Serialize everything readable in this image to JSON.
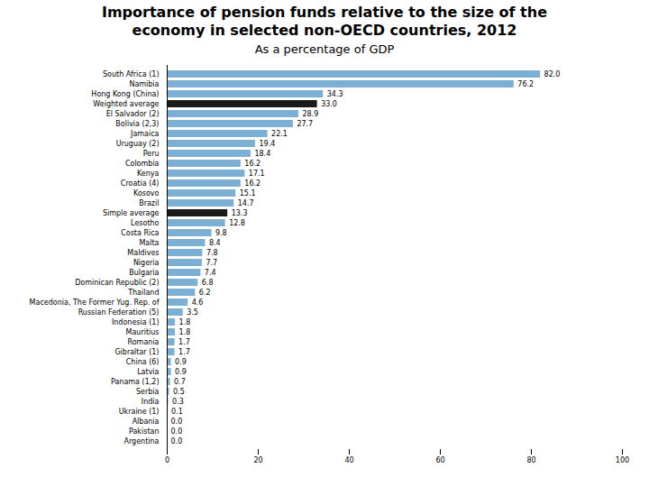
{
  "chart_data": {
    "type": "bar",
    "orientation": "horizontal",
    "title": "Importance of pension funds relative to the size of the\neconomy in selected non-OECD countries, 2012",
    "subtitle": "As a percentage of GDP",
    "categories": [
      "South Africa (1)",
      "Namibia",
      "Hong Kong (China)",
      "Weighted average",
      "El Salvador (2)",
      "Bolivia (2,3)",
      "Jamaica",
      "Uruguay (2)",
      "Peru",
      "Colombia",
      "Kenya",
      "Croatia (4)",
      "Kosovo",
      "Brazil",
      "Simple average",
      "Lesotho",
      "Costa Rica",
      "Malta",
      "Maldives",
      "Nigeria",
      "Bulgaria",
      "Dominican Republic (2)",
      "Thailand",
      "Macedonia, The Former Yug. Rep. of",
      "Russian Federation (5)",
      "Indonesia (1)",
      "Mauritius",
      "Romania",
      "Gibraltar (1)",
      "China (6)",
      "Latvia",
      "Panama (1,2)",
      "Serbia",
      "India",
      "Ukraine (1)",
      "Albania",
      "Pakistan",
      "Argentina"
    ],
    "values": [
      82.0,
      76.2,
      34.3,
      33.0,
      28.9,
      27.7,
      22.1,
      19.4,
      18.4,
      16.2,
      17.1,
      16.2,
      15.1,
      14.7,
      13.3,
      12.8,
      9.8,
      8.4,
      7.8,
      7.7,
      7.4,
      6.8,
      6.2,
      4.6,
      3.5,
      1.8,
      1.8,
      1.7,
      1.7,
      0.9,
      0.9,
      0.7,
      0.5,
      0.3,
      0.1,
      0.0,
      0.0,
      0.0
    ],
    "value_labels": [
      "82.0",
      "76.2",
      "34.3",
      "33.0",
      "28.9",
      "27.7",
      "22.1",
      "19.4",
      "18.4",
      "16.2",
      "17.1",
      "16.2",
      "15.1",
      "14.7",
      "13.3",
      "12.8",
      "9.8",
      "8.4",
      "7.8",
      "7.7",
      "7.4",
      "6.8",
      "6.2",
      "4.6",
      "3.5",
      "1.8",
      "1.8",
      "1.7",
      "1.7",
      "0.9",
      "0.9",
      "0.7",
      "0.5",
      "0.3",
      "0.1",
      "0.0",
      "0.0",
      "0.0"
    ],
    "colors": [
      "#7BAFD4",
      "#7BAFD4",
      "#7BAFD4",
      "#1a1a1a",
      "#7BAFD4",
      "#7BAFD4",
      "#7BAFD4",
      "#7BAFD4",
      "#7BAFD4",
      "#7BAFD4",
      "#7BAFD4",
      "#7BAFD4",
      "#7BAFD4",
      "#7BAFD4",
      "#1a1a1a",
      "#7BAFD4",
      "#7BAFD4",
      "#7BAFD4",
      "#7BAFD4",
      "#7BAFD4",
      "#7BAFD4",
      "#7BAFD4",
      "#7BAFD4",
      "#7BAFD4",
      "#7BAFD4",
      "#7BAFD4",
      "#7BAFD4",
      "#7BAFD4",
      "#7BAFD4",
      "#7BAFD4",
      "#7BAFD4",
      "#7BAFD4",
      "#7BAFD4",
      "#7BAFD4",
      "#7BAFD4",
      "#7BAFD4",
      "#7BAFD4",
      "#7BAFD4"
    ],
    "xlim": [
      0,
      100
    ],
    "xticks": [
      0,
      20,
      40,
      60,
      80,
      100
    ],
    "grid": false,
    "data_labels": true
  }
}
